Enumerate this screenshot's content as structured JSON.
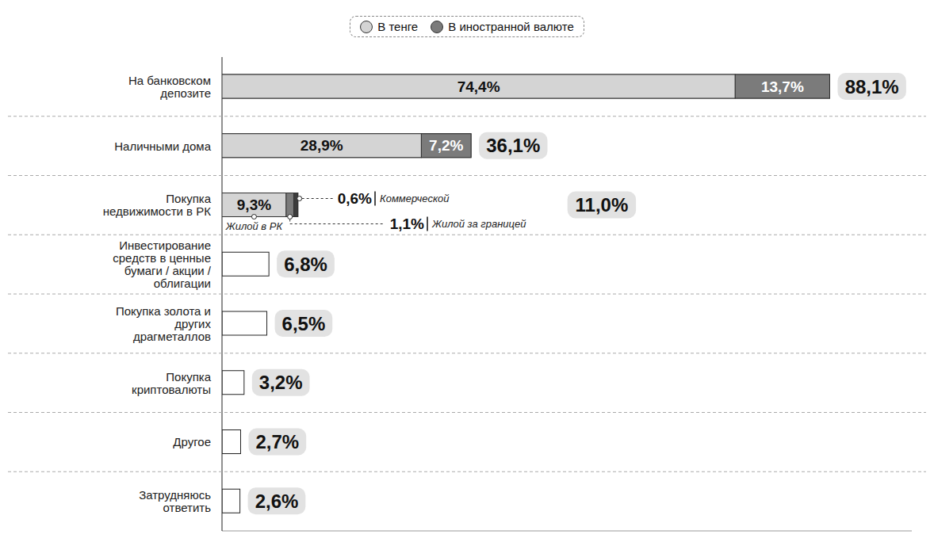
{
  "chart_data": {
    "type": "bar",
    "orientation": "horizontal",
    "stacked": true,
    "data_labels": true,
    "tick_labels": "y",
    "legend": "top",
    "categories": [
      "На банковском депозите",
      "Наличными дома",
      "Покупка недвижимости в РК",
      "Инвестирование средств в ценные бумаги / акции / облигации",
      "Покупка золота и других драгметаллов",
      "Покупка криптовалюты",
      "Другое",
      "Затрудняюсь ответить"
    ],
    "series": [
      {
        "name": "В тенге",
        "color": "#d4d4d4",
        "values": [
          74.4,
          28.9,
          null,
          null,
          null,
          null,
          null,
          null
        ],
        "value_labels": [
          "74,4%",
          "28,9%",
          null,
          null,
          null,
          null,
          null,
          null
        ]
      },
      {
        "name": "В иностранной валюте",
        "color": "#7b7b7b",
        "values": [
          13.7,
          7.2,
          null,
          null,
          null,
          null,
          null,
          null
        ],
        "value_labels": [
          "13,7%",
          "7,2%",
          null,
          null,
          null,
          null,
          null,
          null
        ]
      }
    ],
    "breakdown": {
      "category": "Покупка недвижимости в РК",
      "series": [
        {
          "name": "Жилой в РК",
          "color": "#d4d4d4",
          "value": 9.3,
          "value_label": "9,3%"
        },
        {
          "name": "Жилой за границей",
          "color": "#7b7b7b",
          "value": 1.1,
          "value_label": "1,1%"
        },
        {
          "name": "Коммерческой",
          "color": "#3c3c3c",
          "value": 0.6,
          "value_label": "0,6%"
        }
      ]
    },
    "totals": [
      88.1,
      36.1,
      11.0,
      6.8,
      6.5,
      3.2,
      2.7,
      2.6
    ],
    "total_labels": [
      "88,1%",
      "36,1%",
      "11,0%",
      "6,8%",
      "6,5%",
      "3,2%",
      "2,7%",
      "2,6%"
    ],
    "xlim": [
      0,
      100
    ]
  }
}
